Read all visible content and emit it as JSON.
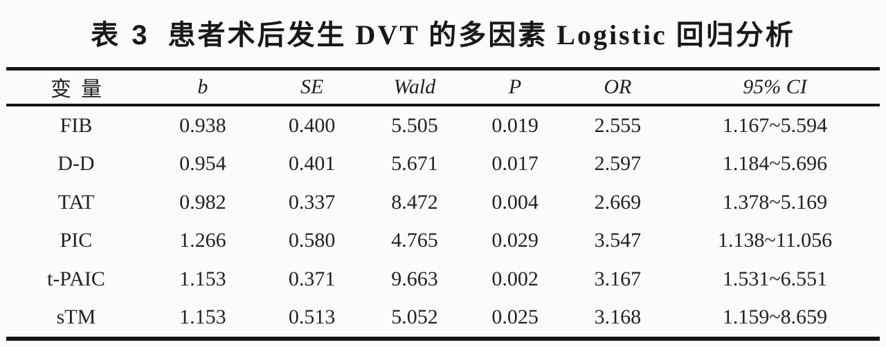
{
  "page": {
    "background": "#fcfbfa",
    "ink_color": "#1c1c1c",
    "rule_color": "#161616"
  },
  "table": {
    "title_prefix": "表 3",
    "title_text": "患者术后发生 DVT 的多因素 Logistic 回归分析",
    "columns": [
      "变量",
      "b",
      "SE",
      "Wald",
      "P",
      "OR",
      "95% CI"
    ],
    "rows": [
      [
        "FIB",
        "0.938",
        "0.400",
        "5.505",
        "0.019",
        "2.555",
        "1.167~5.594"
      ],
      [
        "D-D",
        "0.954",
        "0.401",
        "5.671",
        "0.017",
        "2.597",
        "1.184~5.696"
      ],
      [
        "TAT",
        "0.982",
        "0.337",
        "8.472",
        "0.004",
        "2.669",
        "1.378~5.169"
      ],
      [
        "PIC",
        "1.266",
        "0.580",
        "4.765",
        "0.029",
        "3.547",
        "1.138~11.056"
      ],
      [
        "t-PAIC",
        "1.153",
        "0.371",
        "9.663",
        "0.002",
        "3.167",
        "1.531~6.551"
      ],
      [
        "sTM",
        "1.153",
        "0.513",
        "5.052",
        "0.025",
        "3.168",
        "1.159~8.659"
      ]
    ]
  }
}
